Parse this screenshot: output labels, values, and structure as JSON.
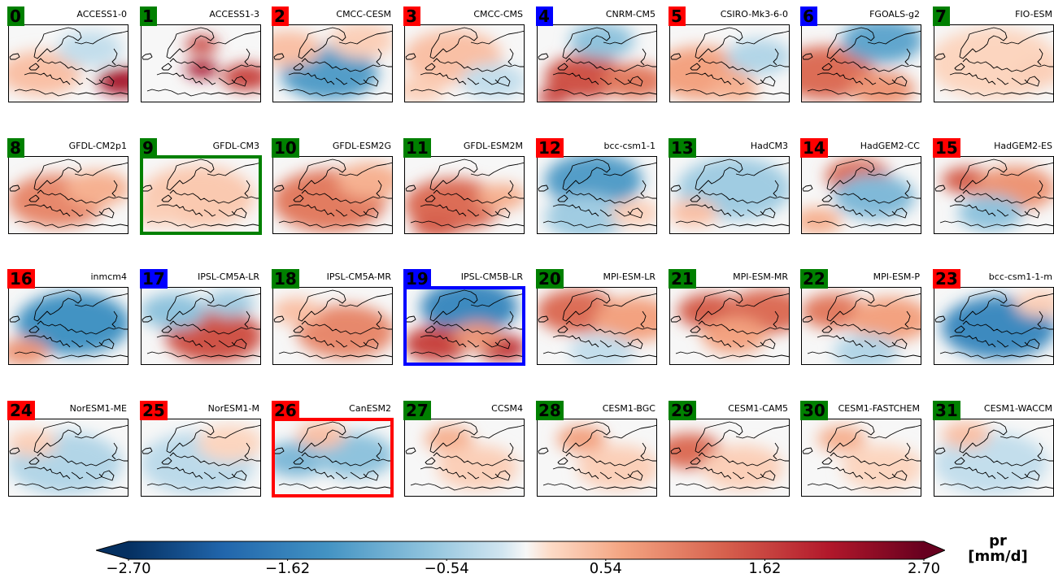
{
  "models": [
    {
      "index": "0",
      "name": "ACCESS1-0",
      "color": "#008000"
    },
    {
      "index": "1",
      "name": "ACCESS1-3",
      "color": "#008000"
    },
    {
      "index": "2",
      "name": "CMCC-CESM",
      "color": "#ff0000"
    },
    {
      "index": "3",
      "name": "CMCC-CMS",
      "color": "#ff0000"
    },
    {
      "index": "4",
      "name": "CNRM-CM5",
      "color": "#0000ff"
    },
    {
      "index": "5",
      "name": "CSIRO-Mk3-6-0",
      "color": "#ff0000"
    },
    {
      "index": "6",
      "name": "FGOALS-g2",
      "color": "#0000ff"
    },
    {
      "index": "7",
      "name": "FIO-ESM",
      "color": "#008000"
    },
    {
      "index": "8",
      "name": "GFDL-CM2p1",
      "color": "#008000"
    },
    {
      "index": "9",
      "name": "GFDL-CM3",
      "color": "#008000",
      "highlight": "#008000"
    },
    {
      "index": "10",
      "name": "GFDL-ESM2G",
      "color": "#008000"
    },
    {
      "index": "11",
      "name": "GFDL-ESM2M",
      "color": "#008000"
    },
    {
      "index": "12",
      "name": "bcc-csm1-1",
      "color": "#ff0000"
    },
    {
      "index": "13",
      "name": "HadCM3",
      "color": "#008000"
    },
    {
      "index": "14",
      "name": "HadGEM2-CC",
      "color": "#ff0000"
    },
    {
      "index": "15",
      "name": "HadGEM2-ES",
      "color": "#ff0000"
    },
    {
      "index": "16",
      "name": "inmcm4",
      "color": "#ff0000"
    },
    {
      "index": "17",
      "name": "IPSL-CM5A-LR",
      "color": "#0000ff"
    },
    {
      "index": "18",
      "name": "IPSL-CM5A-MR",
      "color": "#008000"
    },
    {
      "index": "19",
      "name": "IPSL-CM5B-LR",
      "color": "#0000ff",
      "highlight": "#0000ff"
    },
    {
      "index": "20",
      "name": "MPI-ESM-LR",
      "color": "#008000"
    },
    {
      "index": "21",
      "name": "MPI-ESM-MR",
      "color": "#008000"
    },
    {
      "index": "22",
      "name": "MPI-ESM-P",
      "color": "#008000"
    },
    {
      "index": "23",
      "name": "bcc-csm1-1-m",
      "color": "#ff0000"
    },
    {
      "index": "24",
      "name": "NorESM1-ME",
      "color": "#ff0000"
    },
    {
      "index": "25",
      "name": "NorESM1-M",
      "color": "#ff0000"
    },
    {
      "index": "26",
      "name": "CanESM2",
      "color": "#ff0000",
      "highlight": "#ff0000"
    },
    {
      "index": "27",
      "name": "CCSM4",
      "color": "#008000"
    },
    {
      "index": "28",
      "name": "CESM1-BGC",
      "color": "#008000"
    },
    {
      "index": "29",
      "name": "CESM1-CAM5",
      "color": "#008000"
    },
    {
      "index": "30",
      "name": "CESM1-FASTCHEM",
      "color": "#008000"
    },
    {
      "index": "31",
      "name": "CESM1-WACCM",
      "color": "#008000"
    }
  ],
  "chart_data": {
    "type": "heatmap",
    "variable": "pr",
    "unit": "[mm/d]",
    "colorbar": {
      "label": "pr\n[mm/d]",
      "cmap": "RdBu_r",
      "vmin": -2.7,
      "vmax": 2.7,
      "extend": "both",
      "ticks": [
        -2.7,
        -1.62,
        -0.54,
        0.54,
        1.62,
        2.7
      ],
      "tick_labels": [
        "−2.70",
        "−1.62",
        "−0.54",
        "0.54",
        "1.62",
        "2.70"
      ]
    },
    "layout": {
      "rows": 4,
      "cols": 8
    },
    "badge_color_meaning": [
      "#008000",
      "#ff0000",
      "#0000ff"
    ]
  }
}
